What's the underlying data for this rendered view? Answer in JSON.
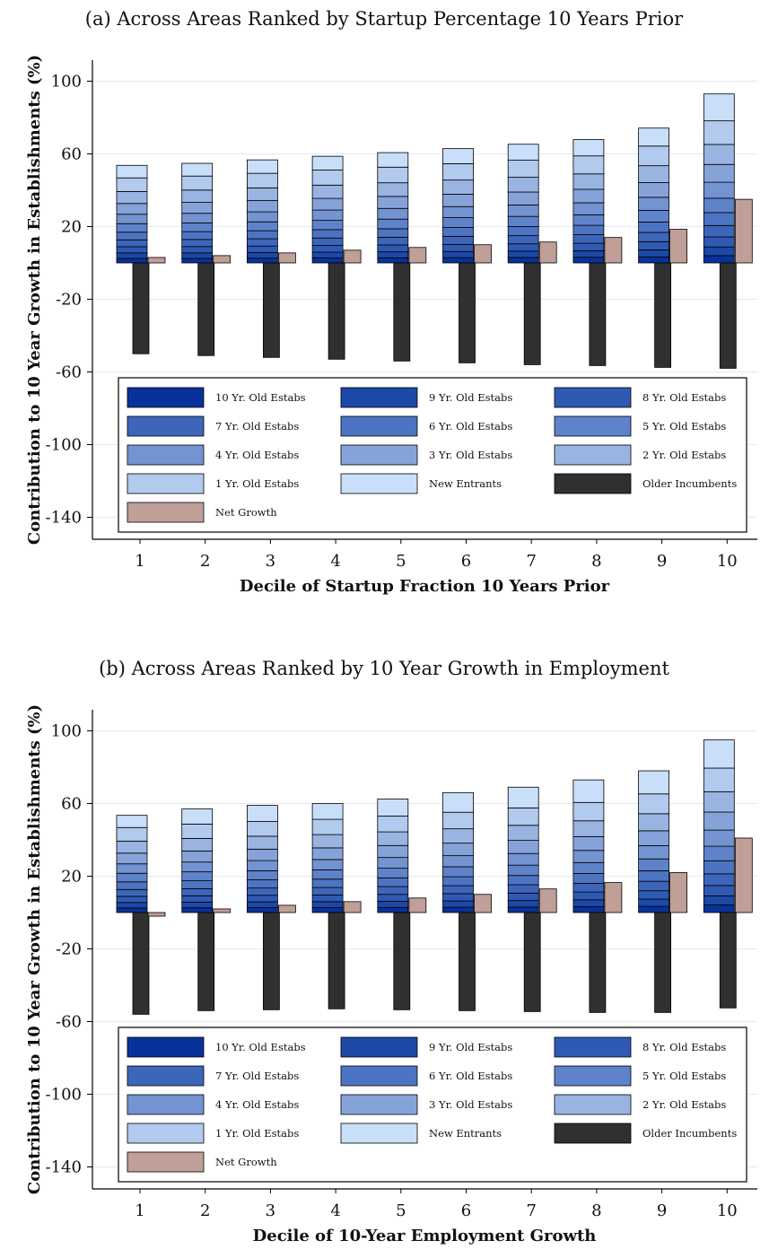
{
  "chart_data": [
    {
      "type": "bar",
      "title": "(a) Across Areas Ranked by Startup Percentage 10 Years Prior",
      "xlabel": "Decile of Startup Fraction 10 Years Prior",
      "ylabel": "Contribution to 10 Year Growth in Establishments (%)",
      "ylim": [
        -150,
        112
      ],
      "yticks": [
        100,
        60,
        20,
        -20,
        -60,
        -100,
        -140
      ],
      "categories": [
        "1",
        "2",
        "3",
        "4",
        "5",
        "6",
        "7",
        "8",
        "9",
        "10"
      ],
      "stack_series": [
        {
          "name": "10 Yr. Old Estabs",
          "color": "#08329a",
          "values": [
            2.5,
            2.5,
            2.6,
            2.7,
            2.8,
            2.9,
            3.0,
            3.1,
            3.3,
            4.0
          ]
        },
        {
          "name": "9 Yr. Old Estabs",
          "color": "#1c48a8",
          "values": [
            3.0,
            3.0,
            3.1,
            3.2,
            3.3,
            3.4,
            3.5,
            3.6,
            3.9,
            4.8
          ]
        },
        {
          "name": "8 Yr. Old Estabs",
          "color": "#2f5ab4",
          "values": [
            3.4,
            3.5,
            3.6,
            3.7,
            3.8,
            3.9,
            4.0,
            4.1,
            4.5,
            5.5
          ]
        },
        {
          "name": "7 Yr. Old Estabs",
          "color": "#3d66ba",
          "values": [
            3.8,
            3.9,
            4.0,
            4.1,
            4.2,
            4.4,
            4.5,
            4.7,
            5.1,
            6.3
          ]
        },
        {
          "name": "6 Yr. Old Estabs",
          "color": "#4d74c2",
          "values": [
            4.2,
            4.3,
            4.4,
            4.6,
            4.7,
            4.9,
            5.0,
            5.2,
            5.7,
            7.1
          ]
        },
        {
          "name": "5 Yr. Old Estabs",
          "color": "#5f83ca",
          "values": [
            4.7,
            4.8,
            4.9,
            5.1,
            5.3,
            5.4,
            5.6,
            5.8,
            6.4,
            7.9
          ]
        },
        {
          "name": "4 Yr. Old Estabs",
          "color": "#7393d1",
          "values": [
            5.2,
            5.3,
            5.5,
            5.7,
            5.9,
            6.1,
            6.3,
            6.6,
            7.2,
            8.8
          ]
        },
        {
          "name": "3 Yr. Old Estabs",
          "color": "#86a3d9",
          "values": [
            5.9,
            6.0,
            6.2,
            6.4,
            6.6,
            6.8,
            7.1,
            7.4,
            8.1,
            9.8
          ]
        },
        {
          "name": "2 Yr. Old Estabs",
          "color": "#99b4e1",
          "values": [
            6.6,
            6.8,
            7.0,
            7.3,
            7.5,
            7.8,
            8.1,
            8.5,
            9.3,
            11.0
          ]
        },
        {
          "name": "1 Yr. Old Estabs",
          "color": "#b1caed",
          "values": [
            7.5,
            7.7,
            8.0,
            8.3,
            8.6,
            9.0,
            9.4,
            9.9,
            10.8,
            13.0
          ]
        },
        {
          "name": "New Entrants",
          "color": "#c9def8",
          "values": [
            6.9,
            7.0,
            7.4,
            7.6,
            8.0,
            8.3,
            8.8,
            9.0,
            9.9,
            14.8
          ]
        }
      ],
      "series": [
        {
          "name": "Older Incumbents",
          "color": "#303030",
          "values": [
            -50,
            -51,
            -52,
            -53,
            -54,
            -55,
            -56,
            -56.5,
            -57.5,
            -58
          ]
        },
        {
          "name": "Net Growth",
          "color": "#bf9f98",
          "values": [
            3,
            4,
            5.5,
            7,
            8.5,
            10,
            11.5,
            14,
            18.5,
            35
          ]
        }
      ],
      "legend": "inside-bottom",
      "grid": true
    },
    {
      "type": "bar",
      "title": "(b) Across Areas Ranked by 10 Year Growth in Employment",
      "xlabel": "Decile of 10-Year Employment Growth",
      "ylabel": "Contribution to 10 Year Growth in Establishments (%)",
      "ylim": [
        -150,
        112
      ],
      "yticks": [
        100,
        60,
        20,
        -20,
        -60,
        -100,
        -140
      ],
      "categories": [
        "1",
        "2",
        "3",
        "4",
        "5",
        "6",
        "7",
        "8",
        "9",
        "10"
      ],
      "stack_series": [
        {
          "name": "10 Yr. Old Estabs",
          "color": "#08329a",
          "values": [
            2.5,
            2.6,
            2.7,
            2.7,
            2.8,
            2.9,
            3.0,
            3.2,
            3.4,
            4.2
          ]
        },
        {
          "name": "9 Yr. Old Estabs",
          "color": "#1c48a8",
          "values": [
            3.0,
            3.1,
            3.2,
            3.3,
            3.4,
            3.5,
            3.6,
            3.8,
            4.0,
            5.0
          ]
        },
        {
          "name": "8 Yr. Old Estabs",
          "color": "#2f5ab4",
          "values": [
            3.4,
            3.5,
            3.6,
            3.7,
            3.8,
            4.0,
            4.1,
            4.3,
            4.6,
            5.7
          ]
        },
        {
          "name": "7 Yr. Old Estabs",
          "color": "#3d66ba",
          "values": [
            3.8,
            3.9,
            4.0,
            4.1,
            4.3,
            4.4,
            4.6,
            4.8,
            5.2,
            6.4
          ]
        },
        {
          "name": "6 Yr. Old Estabs",
          "color": "#4d74c2",
          "values": [
            4.2,
            4.4,
            4.5,
            4.6,
            4.8,
            4.9,
            5.1,
            5.4,
            5.8,
            7.2
          ]
        },
        {
          "name": "5 Yr. Old Estabs",
          "color": "#5f83ca",
          "values": [
            4.7,
            4.9,
            5.0,
            5.1,
            5.3,
            5.5,
            5.7,
            6.0,
            6.5,
            8.0
          ]
        },
        {
          "name": "4 Yr. Old Estabs",
          "color": "#7393d1",
          "values": [
            5.2,
            5.4,
            5.6,
            5.7,
            5.9,
            6.1,
            6.4,
            6.7,
            7.3,
            8.9
          ]
        },
        {
          "name": "3 Yr. Old Estabs",
          "color": "#86a3d9",
          "values": [
            5.9,
            6.1,
            6.3,
            6.4,
            6.6,
            6.9,
            7.2,
            7.6,
            8.2,
            9.9
          ]
        },
        {
          "name": "2 Yr. Old Estabs",
          "color": "#99b4e1",
          "values": [
            6.6,
            6.9,
            7.1,
            7.3,
            7.5,
            7.9,
            8.3,
            8.7,
            9.4,
            11.2
          ]
        },
        {
          "name": "1 Yr. Old Estabs",
          "color": "#b1caed",
          "values": [
            7.5,
            7.9,
            8.1,
            8.4,
            8.7,
            9.1,
            9.6,
            10.1,
            10.9,
            13.0
          ]
        },
        {
          "name": "New Entrants",
          "color": "#c9def8",
          "values": [
            6.7,
            8.3,
            8.9,
            8.7,
            9.4,
            10.8,
            11.4,
            12.4,
            12.7,
            15.5
          ]
        }
      ],
      "series": [
        {
          "name": "Older Incumbents",
          "color": "#303030",
          "values": [
            -56,
            -54,
            -53.5,
            -53,
            -53.5,
            -54,
            -54.5,
            -55,
            -55,
            -52.5
          ]
        },
        {
          "name": "Net Growth",
          "color": "#bf9f98",
          "values": [
            -2,
            2,
            4,
            6,
            8,
            10,
            13,
            16.5,
            22,
            41
          ]
        }
      ],
      "legend": "inside-bottom",
      "grid": true
    }
  ]
}
